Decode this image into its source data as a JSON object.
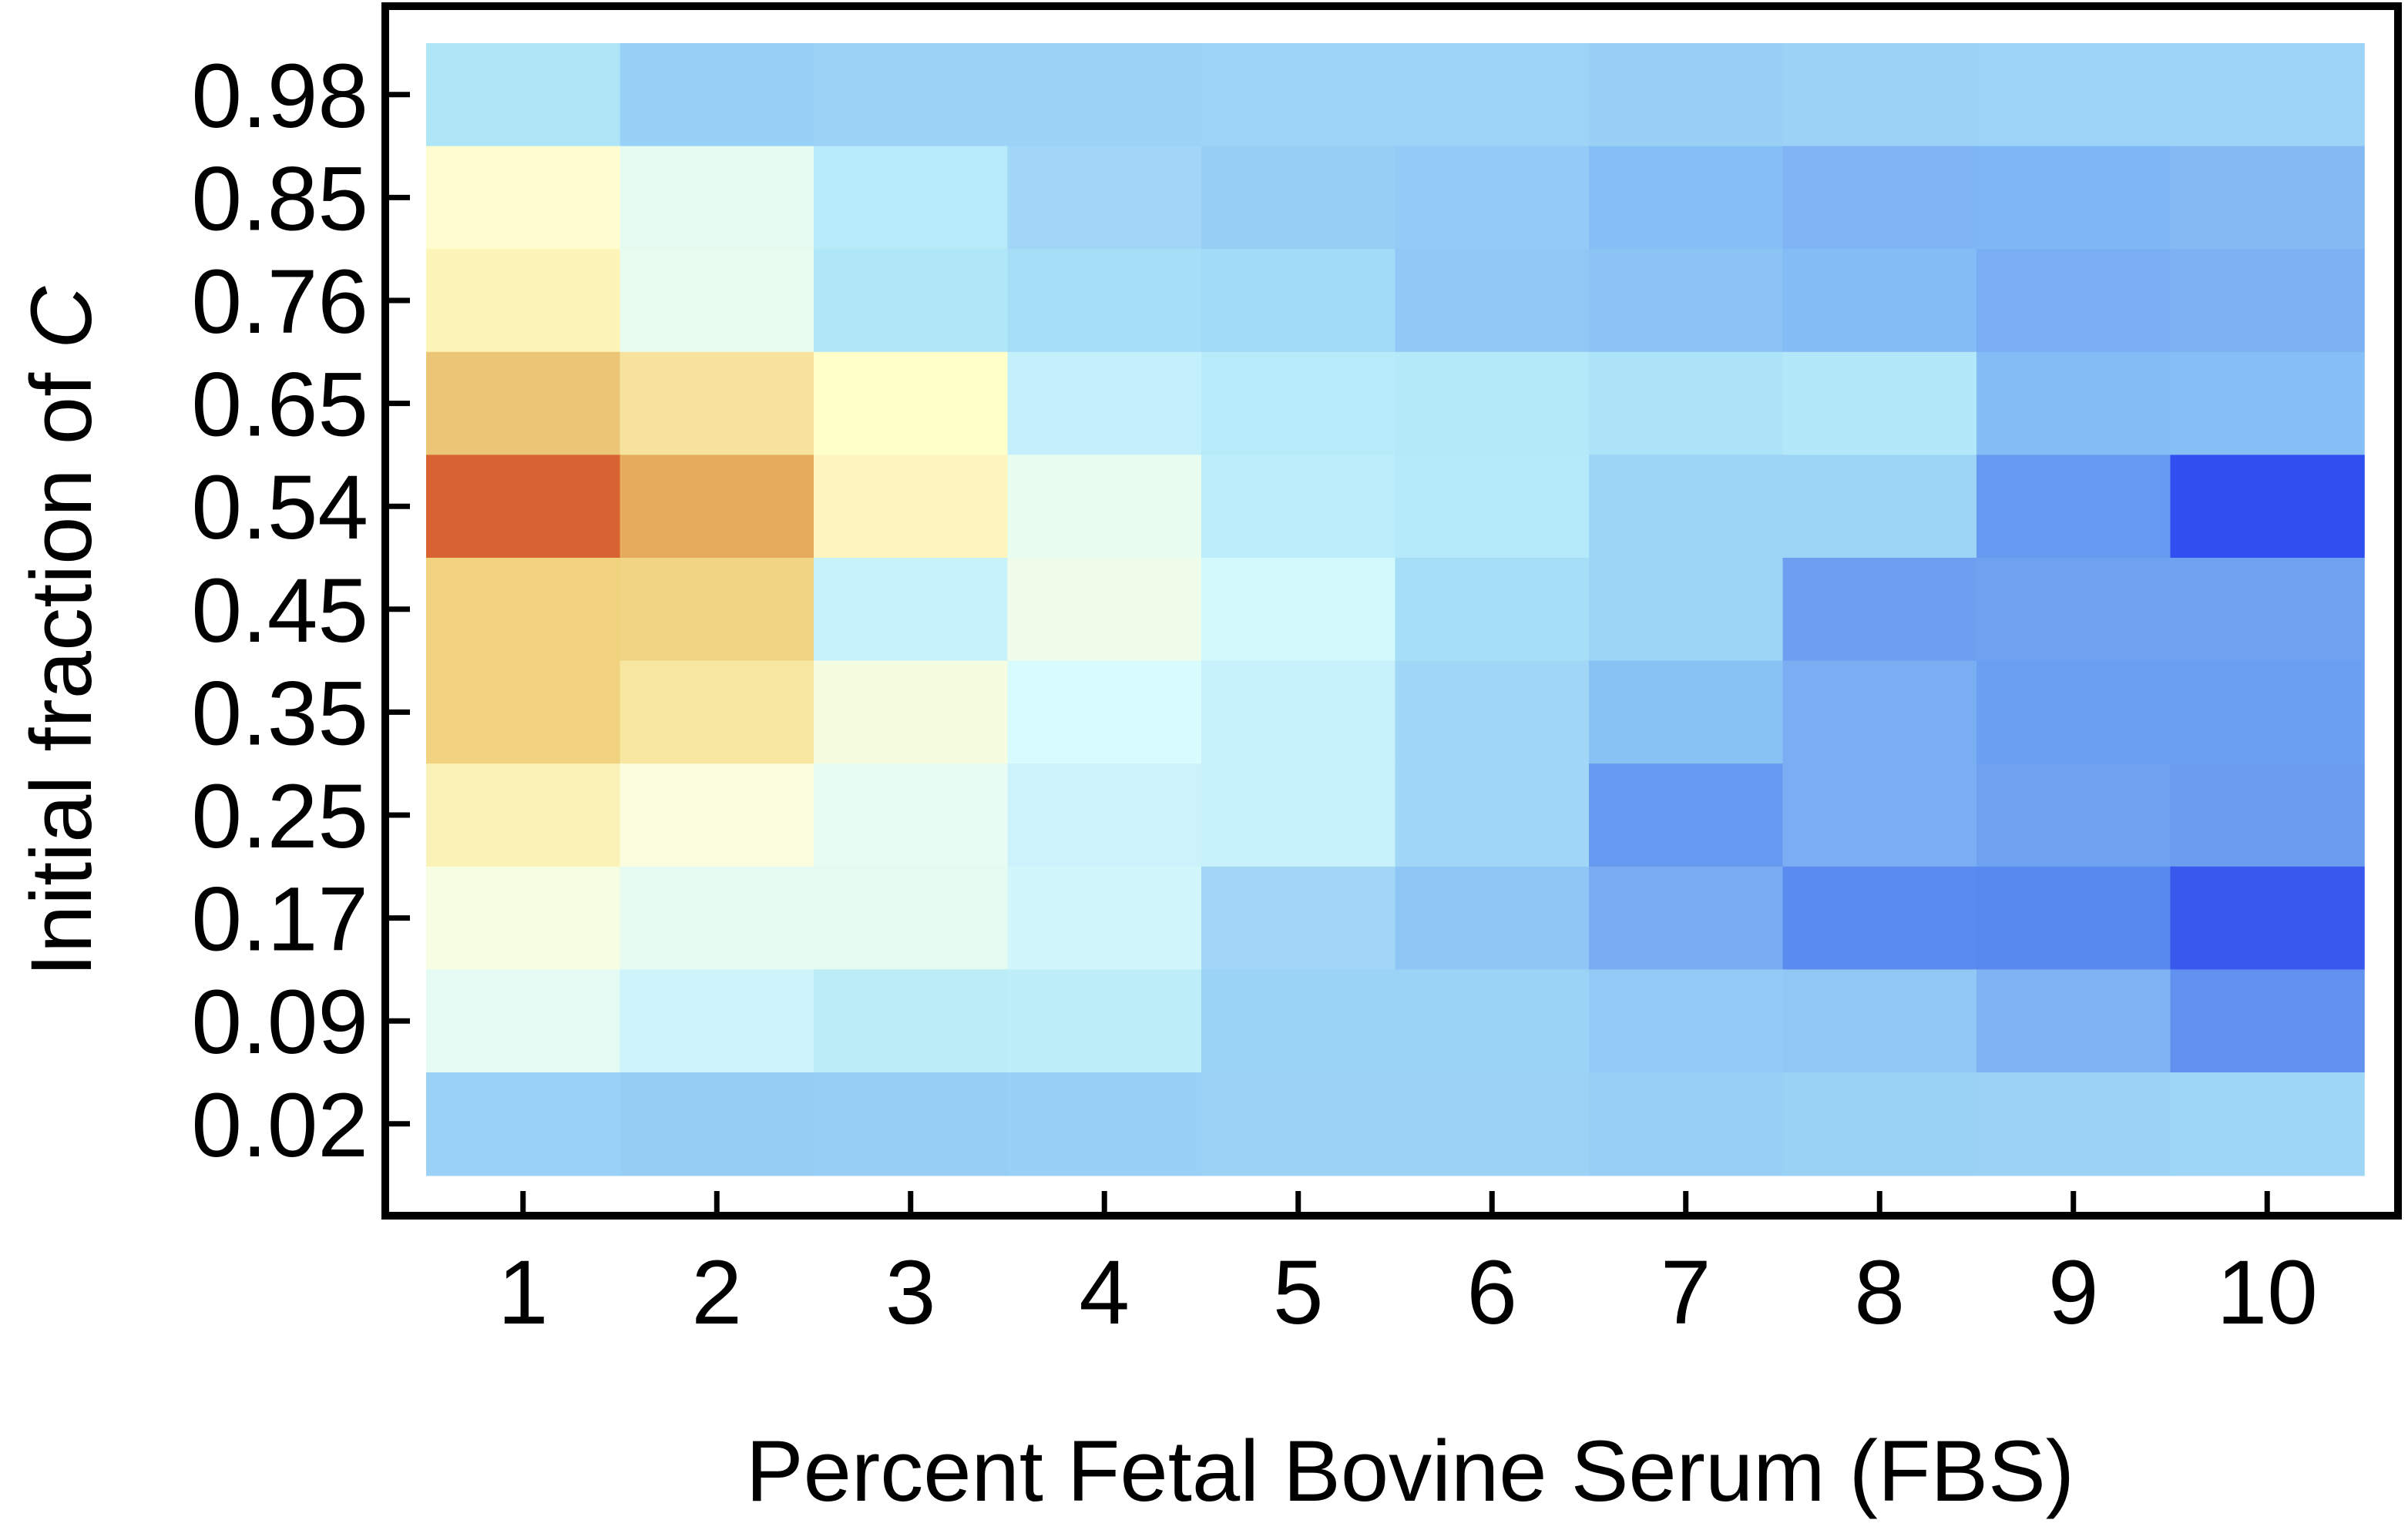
{
  "chart_data": {
    "type": "heatmap",
    "title": "",
    "xlabel": "Percent Fetal Bovine Serum (FBS)",
    "ylabel_parts": [
      "Initial fraction of ",
      "C"
    ],
    "x": [
      "1",
      "2",
      "3",
      "4",
      "5",
      "6",
      "7",
      "8",
      "9",
      "10"
    ],
    "y": [
      "0.98",
      "0.85",
      "0.76",
      "0.65",
      "0.54",
      "0.45",
      "0.35",
      "0.25",
      "0.17",
      "0.09",
      "0.02"
    ],
    "colors": [
      [
        "#aee6f8",
        "#98d1f6",
        "#9bd2f6",
        "#9bd2f6",
        "#9cd3f6",
        "#9cd3f6",
        "#9bd0f6",
        "#9bd2f6",
        "#9cd3f6",
        "#9cd3f6"
      ],
      [
        "#fffdd0",
        "#e6fbf0",
        "#b8ebf9",
        "#a1d6f6",
        "#97cef6",
        "#92ccf6",
        "#85bff5",
        "#7fb5f4",
        "#7fb6f4",
        "#83baf4"
      ],
      [
        "#fdf4b8",
        "#e9fcf0",
        "#b0e7f8",
        "#a6ddf7",
        "#a2dbf7",
        "#8fc8f5",
        "#8bc3f5",
        "#84bcf5",
        "#7aaef3",
        "#7cb2f4"
      ],
      [
        "#ecc577",
        "#f7e39e",
        "#ffffc9",
        "#c3f0fb",
        "#b8ebf9",
        "#b3e9f9",
        "#ade4f8",
        "#b2e8f9",
        "#84bcf5",
        "#86bff5"
      ],
      [
        "#d96232",
        "#e6ab5c",
        "#fef4bd",
        "#e9fcf0",
        "#bcedfa",
        "#b4eaf9",
        "#9dd5f6",
        "#9dd5f6",
        "#6699f0",
        "#2f4ff0"
      ],
      [
        "#f1d37f",
        "#f1d584",
        "#c8f2fb",
        "#eefce9",
        "#d2fafc",
        "#a6ddf7",
        "#9dd5f6",
        "#6d9ff0",
        "#6ea2f1",
        "#6ea2f1"
      ],
      [
        "#f1d37f",
        "#f8e7a1",
        "#f6fcdf",
        "#d8fbfd",
        "#c8f2fb",
        "#a0d7f6",
        "#88c1f4",
        "#7aaef3",
        "#6b9ff0",
        "#6b9ff0"
      ],
      [
        "#fbf2b7",
        "#fcfddf",
        "#e7fcf2",
        "#ccf3fb",
        "#c8f2fb",
        "#a1d7f6",
        "#6699f0",
        "#7aaef2",
        "#6ea2f1",
        "#6a9cf0"
      ],
      [
        "#f7fde2",
        "#e6fbf1",
        "#e4fbf1",
        "#d1f6fb",
        "#a1d6f6",
        "#8ec7f5",
        "#79acf2",
        "#5a8bee",
        "#5889ee",
        "#3958ee"
      ],
      [
        "#e4fbf4",
        "#cdf4fb",
        "#bbedf9",
        "#bdeef9",
        "#9bd3f6",
        "#9bd3f6",
        "#94cbf6",
        "#8fc7f5",
        "#7db2f3",
        "#6192ef"
      ],
      [
        "#99d2f6",
        "#96cdf5",
        "#97cef6",
        "#98d0f6",
        "#9bd2f6",
        "#9bd2f6",
        "#98cff6",
        "#9ad2f6",
        "#9bd2f6",
        "#9ed6f7"
      ]
    ],
    "grid": false,
    "legend": "none"
  }
}
